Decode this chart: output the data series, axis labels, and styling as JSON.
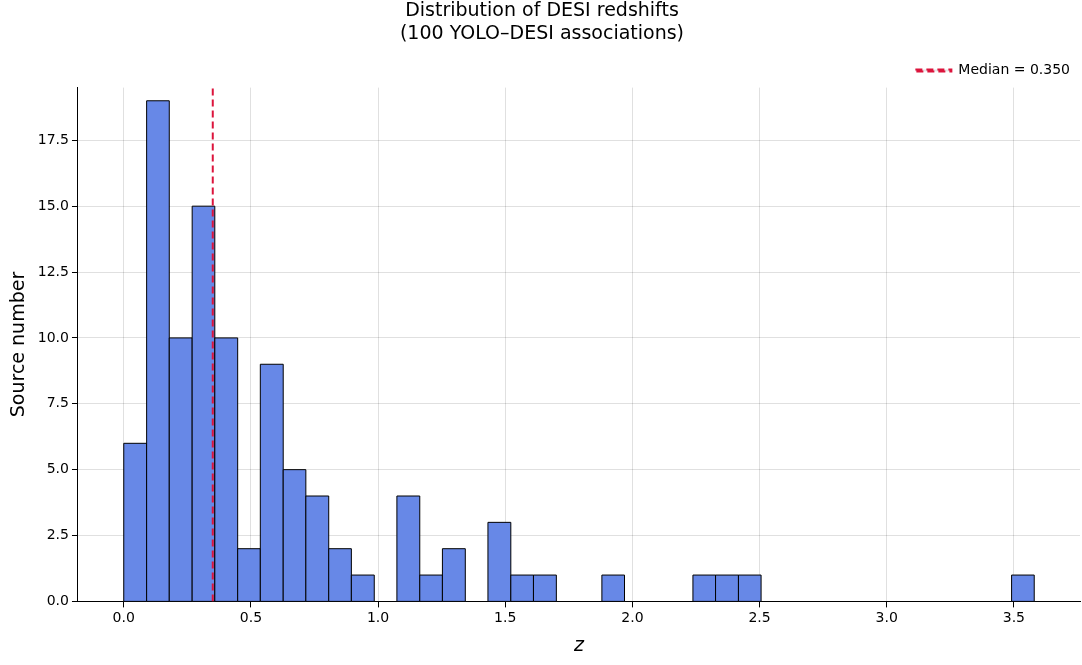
{
  "chart_data": {
    "type": "histogram",
    "title": "Distribution of DESI redshifts\n(100 YOLO–DESI associations)",
    "xlabel": "z",
    "ylabel": "Source number",
    "bins": [
      0,
      0.09,
      0.179,
      0.269,
      0.358,
      0.448,
      0.537,
      0.627,
      0.716,
      0.806,
      0.895,
      0.985,
      1.074,
      1.164,
      1.253,
      1.343,
      1.432,
      1.522,
      1.611,
      1.701,
      1.79,
      1.88,
      1.969,
      2.059,
      2.148,
      2.238,
      2.327,
      2.417,
      2.506,
      2.596,
      2.685,
      2.775,
      2.864,
      2.954,
      3.043,
      3.133,
      3.222,
      3.312,
      3.401,
      3.491,
      3.58
    ],
    "values": [
      6,
      19,
      10,
      15,
      10,
      2,
      9,
      5,
      4,
      2,
      1,
      0,
      4,
      1,
      2,
      0,
      3,
      1,
      1,
      0,
      0,
      1,
      0,
      0,
      0,
      1,
      1,
      1,
      0,
      0,
      0,
      0,
      0,
      0,
      0,
      0,
      0,
      0,
      0,
      1
    ],
    "color": "#6788e7",
    "xlim": [
      -0.18,
      3.76
    ],
    "ylim": [
      0,
      19.5
    ],
    "xticks": [
      {
        "value": 0,
        "label": "0.0"
      },
      {
        "value": 0.5,
        "label": "0.5"
      },
      {
        "value": 1,
        "label": "1.0"
      },
      {
        "value": 1.5,
        "label": "1.5"
      },
      {
        "value": 2,
        "label": "2.0"
      },
      {
        "value": 2.5,
        "label": "2.5"
      },
      {
        "value": 3,
        "label": "3.0"
      },
      {
        "value": 3.5,
        "label": "3.5"
      }
    ],
    "yticks": [
      {
        "value": 0,
        "label": "0.0"
      },
      {
        "value": 2.5,
        "label": "2.5"
      },
      {
        "value": 5,
        "label": "5.0"
      },
      {
        "value": 7.5,
        "label": "7.5"
      },
      {
        "value": 10,
        "label": "10.0"
      },
      {
        "value": 12.5,
        "label": "12.5"
      },
      {
        "value": 15,
        "label": "15.0"
      },
      {
        "value": 17.5,
        "label": "17.5"
      }
    ],
    "ref_lines": [
      {
        "axis": "x",
        "value": 0.35,
        "label": "Median = 0.350",
        "color": "#dc143c",
        "line_style": "dashed"
      }
    ],
    "grid": true,
    "legend": "top right"
  }
}
